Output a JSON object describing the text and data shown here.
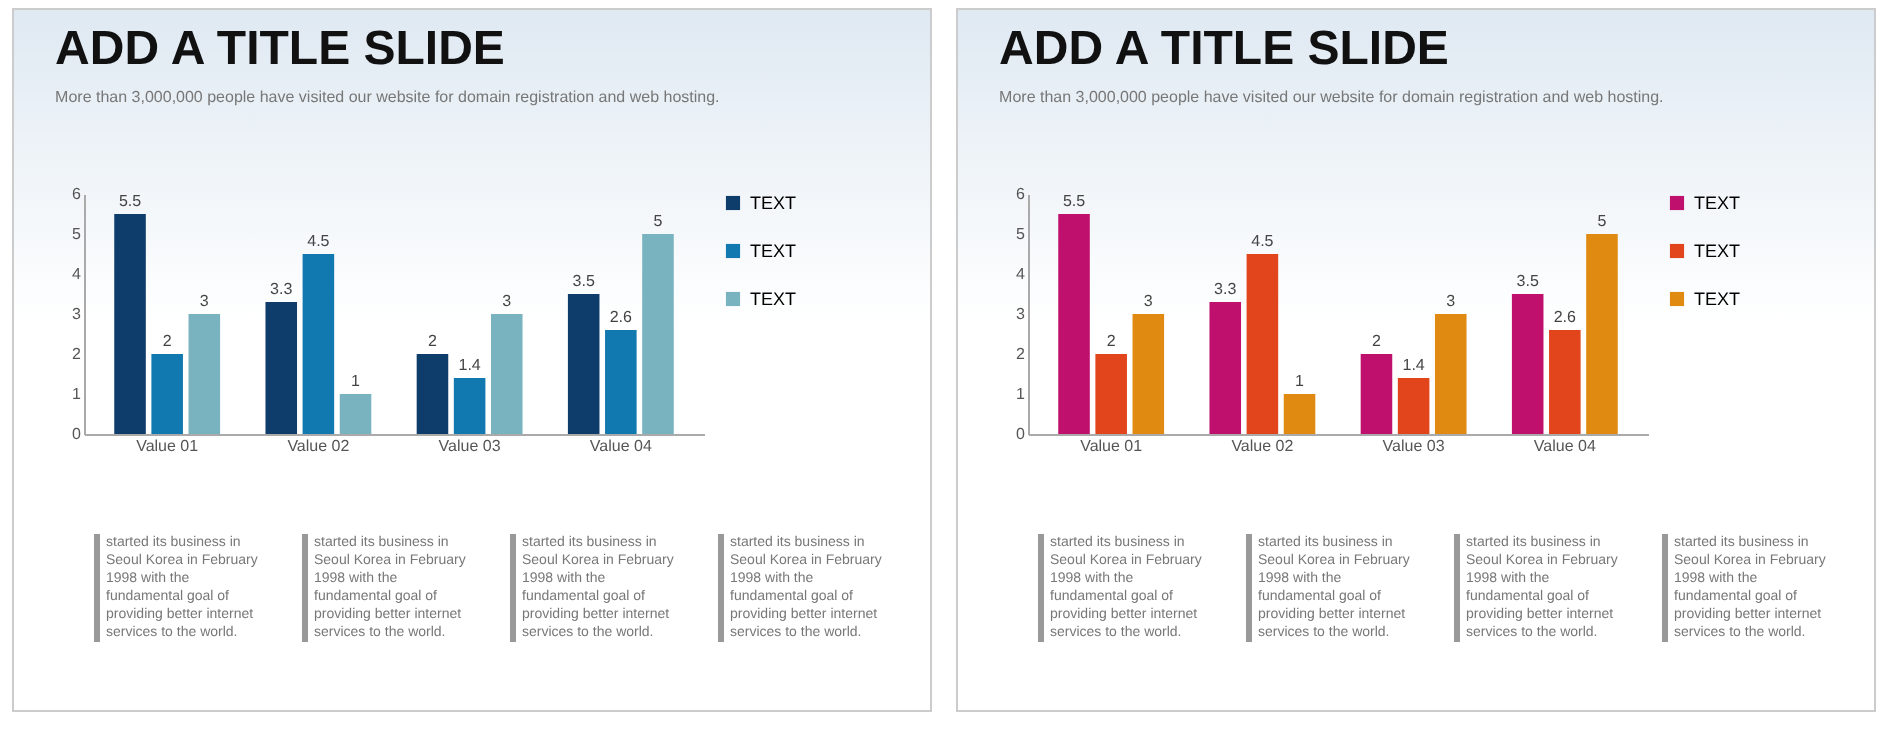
{
  "chart_data": [
    {
      "type": "bar",
      "title": "ADD A TITLE SLIDE",
      "subtitle": "More than 3,000,000 people have visited our website for domain registration and web hosting.",
      "categories": [
        "Value 01",
        "Value 02",
        "Value 03",
        "Value 04"
      ],
      "series": [
        {
          "name": "TEXT",
          "color": "#0f3d6b",
          "values": [
            5.5,
            3.3,
            2,
            3.5
          ]
        },
        {
          "name": "TEXT",
          "color": "#1178b0",
          "values": [
            2,
            4.5,
            1.4,
            2.6
          ]
        },
        {
          "name": "TEXT",
          "color": "#79b3bf",
          "values": [
            3,
            1,
            3,
            5
          ]
        }
      ],
      "ylim": [
        0,
        6
      ],
      "yticks": [
        0,
        1,
        2,
        3,
        4,
        5,
        6
      ],
      "data_labels": true,
      "legend": "right",
      "grid": false,
      "annotations": [
        "started its business in Seoul Korea  in February 1998 with the fundamental goal of providing better internet services to the world.",
        "started its business in Seoul Korea  in February 1998 with the fundamental goal of providing better internet services to the world.",
        "started its business in Seoul Korea  in February 1998 with the fundamental goal of providing better internet services to the world.",
        "started its business in Seoul Korea  in February 1998 with the fundamental goal of providing better internet services to the world."
      ]
    },
    {
      "type": "bar",
      "title": "ADD A TITLE SLIDE",
      "subtitle": "More than 3,000,000 people have visited our website for domain registration and web hosting.",
      "categories": [
        "Value 01",
        "Value 02",
        "Value 03",
        "Value 04"
      ],
      "series": [
        {
          "name": "TEXT",
          "color": "#c0106e",
          "values": [
            5.5,
            3.3,
            2,
            3.5
          ]
        },
        {
          "name": "TEXT",
          "color": "#e2441c",
          "values": [
            2,
            4.5,
            1.4,
            2.6
          ]
        },
        {
          "name": "TEXT",
          "color": "#e08a12",
          "values": [
            3,
            1,
            3,
            5
          ]
        }
      ],
      "ylim": [
        0,
        6
      ],
      "yticks": [
        0,
        1,
        2,
        3,
        4,
        5,
        6
      ],
      "data_labels": true,
      "legend": "right",
      "grid": false,
      "annotations": [
        "started its business in Seoul Korea  in February 1998 with the fundamental goal of providing better internet services to the world.",
        "started its business in Seoul Korea  in February 1998 with the fundamental goal of providing better internet services to the world.",
        "started its business in Seoul Korea  in February 1998 with the fundamental goal of providing better internet services to the world.",
        "started its business in Seoul Korea  in February 1998 with the fundamental goal of providing better internet services to the world."
      ]
    }
  ]
}
